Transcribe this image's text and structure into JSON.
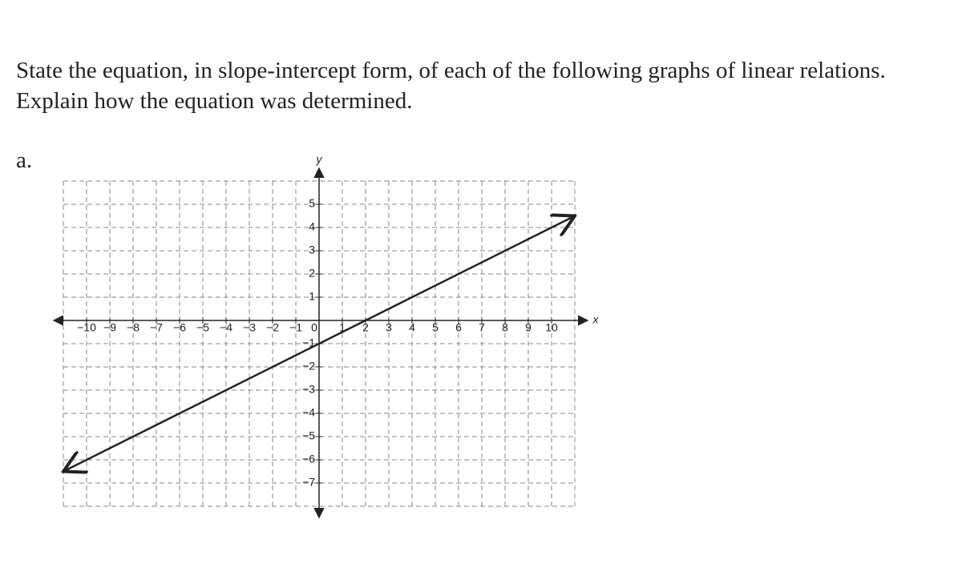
{
  "question": {
    "line1": "State the equation, in slope-intercept form, of each of the following graphs of linear relations.",
    "line2": "Explain how the equation was determined.",
    "part": "a."
  },
  "graph": {
    "x_label": "x",
    "y_label": "y",
    "xlim": [
      -11,
      11
    ],
    "ylim": [
      -8,
      6
    ],
    "xticks": [
      {
        "value": -10,
        "label": "−10"
      },
      {
        "value": -9,
        "label": "−9"
      },
      {
        "value": -8,
        "label": "−8"
      },
      {
        "value": -7,
        "label": "−7"
      },
      {
        "value": -6,
        "label": "−6"
      },
      {
        "value": -5,
        "label": "−5"
      },
      {
        "value": -4,
        "label": "−4"
      },
      {
        "value": -3,
        "label": "−3"
      },
      {
        "value": -2,
        "label": "−2"
      },
      {
        "value": -1,
        "label": "−1"
      },
      0,
      1,
      2,
      3,
      4,
      5,
      6,
      7,
      8,
      9,
      10
    ],
    "yticks": [
      {
        "value": -7,
        "label": "−7"
      },
      {
        "value": -6,
        "label": "−6"
      },
      {
        "value": -5,
        "label": "−5"
      },
      {
        "value": -4,
        "label": "−4"
      },
      {
        "value": -3,
        "label": "−3"
      },
      {
        "value": -2,
        "label": "−2"
      },
      {
        "value": -1,
        "label": "−1"
      },
      1,
      2,
      3,
      4,
      5
    ],
    "line": {
      "x": [
        -11,
        11
      ],
      "y": [
        -6.5,
        4.5
      ]
    }
  }
}
